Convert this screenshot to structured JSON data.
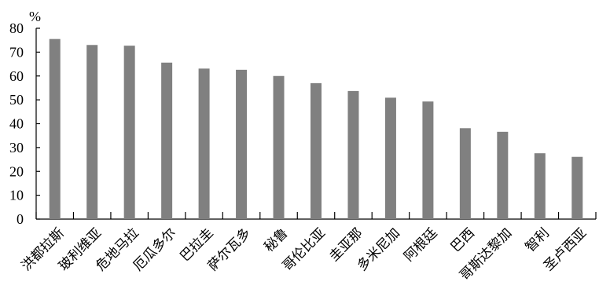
{
  "chart_data": {
    "type": "bar",
    "title": "",
    "xlabel": "",
    "ylabel": "%",
    "ylim": [
      0,
      80
    ],
    "yticks": [
      "0",
      "10",
      "20",
      "30",
      "40",
      "50",
      "60",
      "70",
      "80"
    ],
    "grid": false,
    "legend": "none",
    "bar_color": "#808080",
    "categories": [
      "洪都拉斯",
      "玻利维亚",
      "危地马拉",
      "厄瓜多尔",
      "巴拉圭",
      "萨尔瓦多",
      "秘鲁",
      "哥伦比亚",
      "圭亚那",
      "多米尼加",
      "阿根廷",
      "巴西",
      "哥斯达黎加",
      "智利",
      "圣卢西亚"
    ],
    "values": [
      75.5,
      73,
      72.7,
      65.6,
      63.1,
      62.6,
      60,
      57,
      53.7,
      50.9,
      49.3,
      38.1,
      36.6,
      27.6,
      26.1
    ]
  }
}
